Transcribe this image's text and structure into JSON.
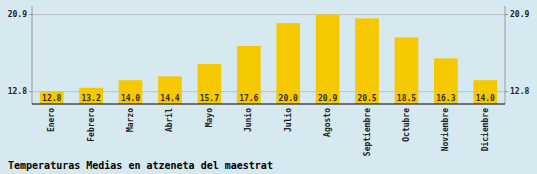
{
  "chart_data": {
    "type": "bar",
    "title": "Temperaturas Medias en atzeneta del maestrat",
    "categories": [
      "Enero",
      "Febrero",
      "Marzo",
      "Abril",
      "Mayo",
      "Junio",
      "Julio",
      "Agosto",
      "Septiembre",
      "Octubre",
      "Noviembre",
      "Diciembre"
    ],
    "values": [
      12.8,
      13.2,
      14.0,
      14.4,
      15.7,
      17.6,
      20.0,
      20.9,
      20.5,
      18.5,
      16.3,
      14.0
    ],
    "value_labels": [
      "12.8",
      "13.2",
      "14.0",
      "14.4",
      "15.7",
      "17.6",
      "20.0",
      "20.9",
      "20.5",
      "18.5",
      "16.3",
      "14.0"
    ],
    "color": "#F5C800",
    "ylim": [
      11.5,
      21.8
    ],
    "yticks": [
      12.8,
      20.9
    ],
    "grid": true,
    "data_labels": true
  }
}
